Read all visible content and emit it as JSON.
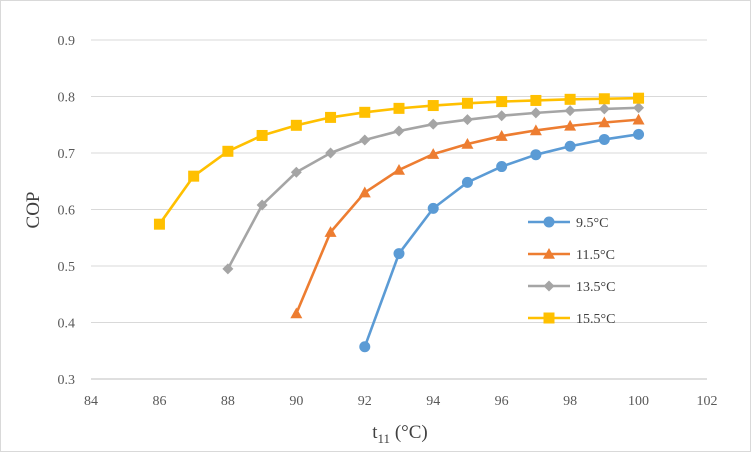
{
  "chart_data": {
    "type": "line",
    "title": "",
    "xlabel": "t",
    "xlabel_sub": "11",
    "xlabel_unit": " (°C)",
    "ylabel": "COP",
    "xlim": [
      84,
      102
    ],
    "ylim": [
      0.3,
      0.9
    ],
    "xticks": [
      "84",
      "86",
      "88",
      "90",
      "92",
      "94",
      "96",
      "98",
      "100",
      "102"
    ],
    "yticks": [
      "0.3",
      "0.4",
      "0.5",
      "0.6",
      "0.7",
      "0.8",
      "0.9"
    ],
    "grid": "horizontal",
    "legend_position": "right",
    "series": [
      {
        "name": "9.5°C",
        "color": "#5b9bd5",
        "marker": "circle",
        "x": [
          92,
          93,
          94,
          95,
          96,
          97,
          98,
          99,
          100
        ],
        "y": [
          0.357,
          0.522,
          0.602,
          0.648,
          0.676,
          0.697,
          0.712,
          0.724,
          0.733
        ]
      },
      {
        "name": "11.5°C",
        "color": "#ed7d31",
        "marker": "triangle",
        "x": [
          90,
          91,
          92,
          93,
          94,
          95,
          96,
          97,
          98,
          99,
          100
        ],
        "y": [
          0.416,
          0.56,
          0.63,
          0.67,
          0.698,
          0.716,
          0.73,
          0.74,
          0.748,
          0.754,
          0.759
        ]
      },
      {
        "name": "13.5°C",
        "color": "#a5a5a5",
        "marker": "diamond",
        "x": [
          88,
          89,
          90,
          91,
          92,
          93,
          94,
          95,
          96,
          97,
          98,
          99,
          100
        ],
        "y": [
          0.495,
          0.608,
          0.666,
          0.7,
          0.723,
          0.739,
          0.751,
          0.759,
          0.766,
          0.771,
          0.775,
          0.778,
          0.78
        ]
      },
      {
        "name": "15.5°C",
        "color": "#ffc000",
        "marker": "square",
        "x": [
          86,
          87,
          88,
          89,
          90,
          91,
          92,
          93,
          94,
          95,
          96,
          97,
          98,
          99,
          100
        ],
        "y": [
          0.574,
          0.659,
          0.703,
          0.731,
          0.749,
          0.763,
          0.772,
          0.779,
          0.784,
          0.788,
          0.791,
          0.793,
          0.795,
          0.796,
          0.797
        ]
      }
    ]
  }
}
